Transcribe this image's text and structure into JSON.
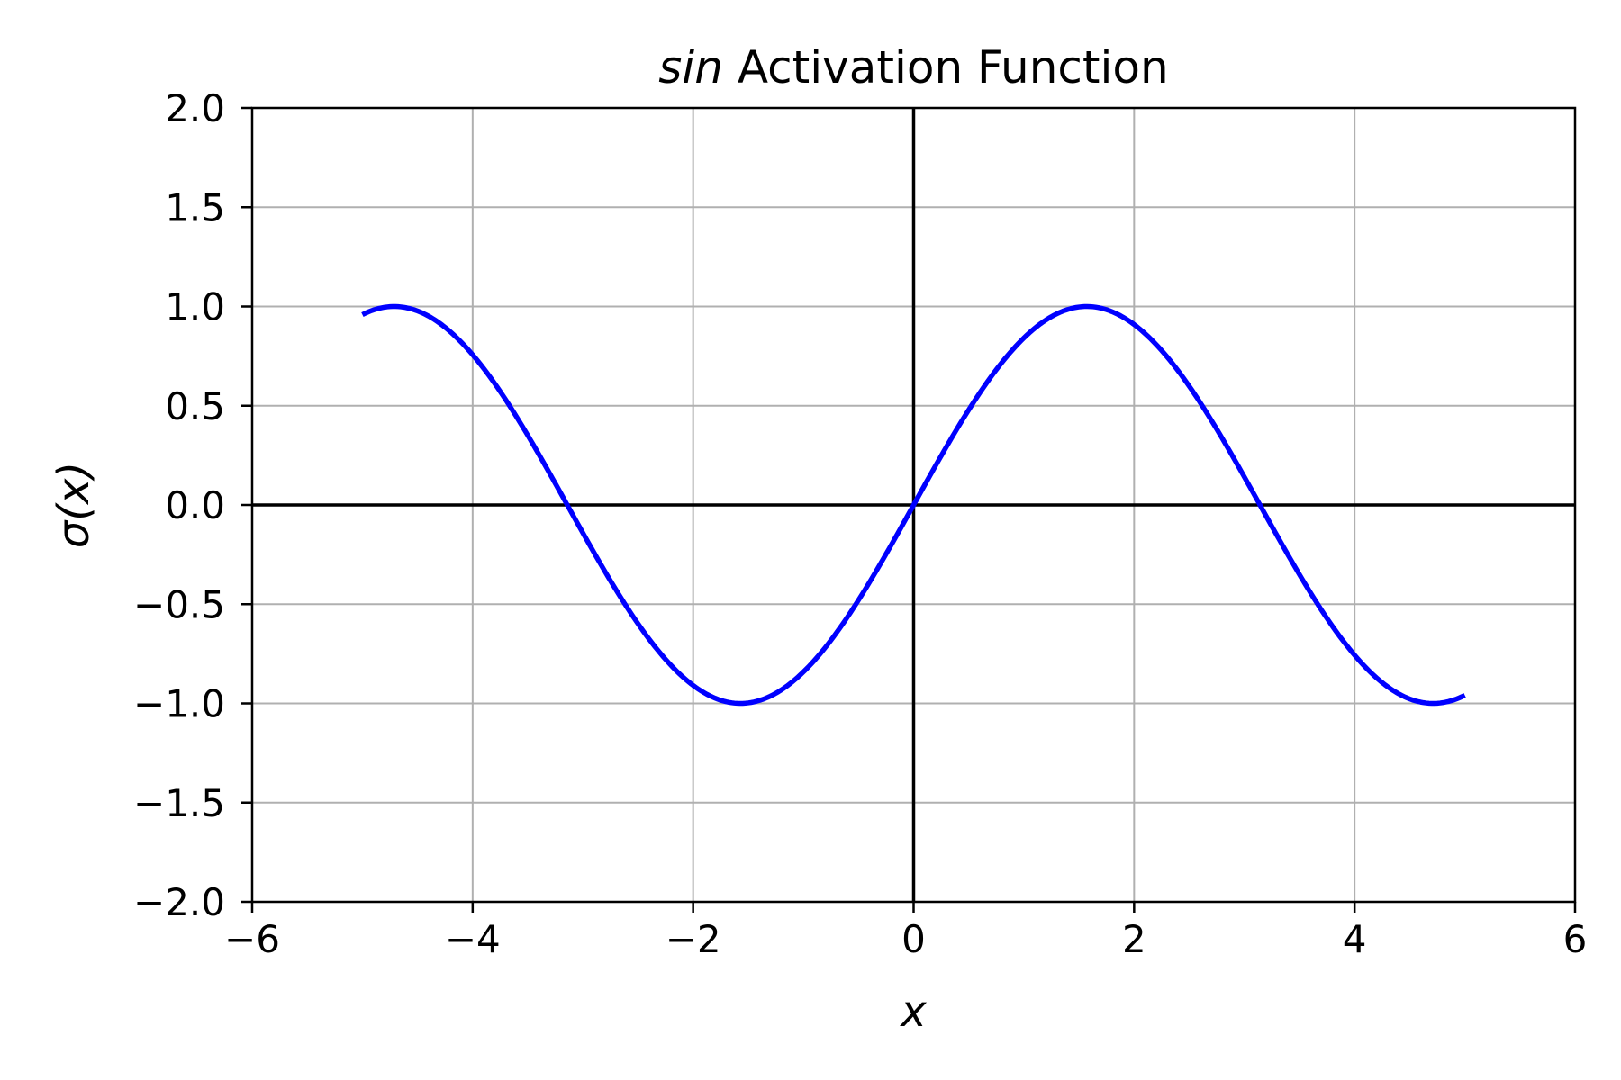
{
  "chart_data": {
    "type": "line",
    "title": "sin Activation Function",
    "title_italic_part": "sin",
    "title_rest": " Activation Function",
    "xlabel": "x",
    "ylabel": "σ(x)",
    "xlim": [
      -6,
      6
    ],
    "ylim": [
      -2.0,
      2.0
    ],
    "xticks": [
      -6,
      -4,
      -2,
      0,
      2,
      4,
      6
    ],
    "xtick_labels": [
      "−6",
      "−4",
      "−2",
      "0",
      "2",
      "4",
      "6"
    ],
    "yticks": [
      -2.0,
      -1.5,
      -1.0,
      -0.5,
      0.0,
      0.5,
      1.0,
      1.5,
      2.0
    ],
    "ytick_labels": [
      "−2.0",
      "−1.5",
      "−1.0",
      "−0.5",
      "0.0",
      "0.5",
      "1.0",
      "1.5",
      "2.0"
    ],
    "grid": true,
    "series": [
      {
        "function": "sin(x)",
        "x_range": [
          -5,
          5
        ],
        "color": "#0000ff",
        "x": [
          -5.0,
          -4.5,
          -4.0,
          -3.5,
          -3.0,
          -2.5,
          -2.0,
          -1.5,
          -1.0,
          -0.5,
          0.0,
          0.5,
          1.0,
          1.5,
          2.0,
          2.5,
          3.0,
          3.5,
          4.0,
          4.5,
          5.0
        ],
        "y": [
          0.959,
          0.978,
          0.757,
          0.351,
          -0.141,
          -0.598,
          -0.909,
          -0.997,
          -0.841,
          -0.479,
          0.0,
          0.479,
          0.841,
          0.997,
          0.909,
          0.598,
          0.141,
          -0.351,
          -0.757,
          -0.978,
          -0.959
        ]
      }
    ],
    "axis_line_color": "#000000",
    "grid_color": "#b0b0b0"
  }
}
